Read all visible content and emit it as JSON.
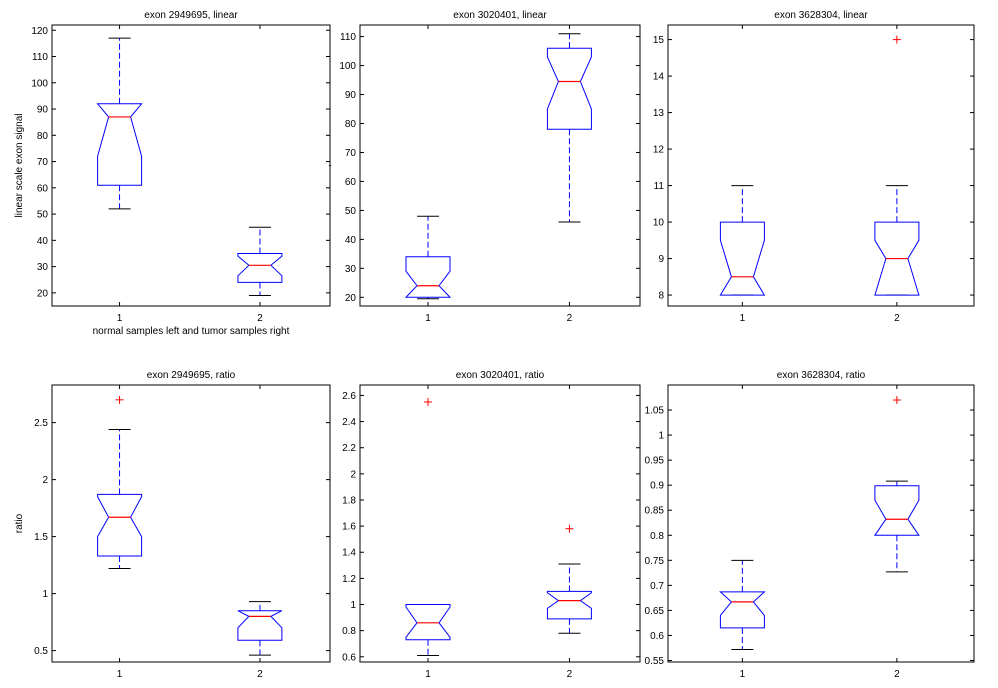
{
  "chart_data": [
    {
      "type": "box",
      "title": "exon 2949695, linear",
      "xlabel": "normal samples left and tumor samples right",
      "ylabel": "linear scale exon signal",
      "categories": [
        "1",
        "2"
      ],
      "ylim": [
        15,
        122
      ],
      "yticks": [
        20,
        30,
        40,
        50,
        60,
        70,
        80,
        90,
        100,
        110,
        120
      ],
      "ytick_labels": [
        "20",
        "30",
        "40",
        "50",
        "60",
        "70",
        "80",
        "90",
        "100",
        "110",
        "120"
      ],
      "boxes": [
        {
          "label": "1",
          "lower_whisker": 52,
          "q1": 61,
          "median": 87,
          "q3": 92,
          "upper_whisker": 117,
          "notch_low": 72,
          "notch_high": 92,
          "outliers": []
        },
        {
          "label": "2",
          "lower_whisker": 19,
          "q1": 24,
          "median": 30.5,
          "q3": 35,
          "upper_whisker": 45,
          "notch_low": 26.5,
          "notch_high": 34,
          "outliers": []
        }
      ]
    },
    {
      "type": "box",
      "title": "exon 3020401, linear",
      "xlabel": "",
      "ylabel": ",",
      "categories": [
        "1",
        "2"
      ],
      "ylim": [
        17,
        114
      ],
      "yticks": [
        20,
        30,
        40,
        50,
        60,
        70,
        80,
        90,
        100,
        110
      ],
      "ytick_labels": [
        "20",
        "30",
        "40",
        "50",
        "60",
        "70",
        "80",
        "90",
        "100",
        "110"
      ],
      "boxes": [
        {
          "label": "1",
          "lower_whisker": 19.5,
          "q1": 20,
          "median": 24,
          "q3": 34,
          "upper_whisker": 48,
          "notch_low": 20,
          "notch_high": 29,
          "outliers": []
        },
        {
          "label": "2",
          "lower_whisker": 46,
          "q1": 78,
          "median": 94.5,
          "q3": 106,
          "upper_whisker": 111,
          "notch_low": 85,
          "notch_high": 103,
          "outliers": []
        }
      ]
    },
    {
      "type": "box",
      "title": "exon 3628304, linear",
      "xlabel": "",
      "ylabel": "",
      "categories": [
        "1",
        "2"
      ],
      "ylim": [
        7.7,
        15.4
      ],
      "yticks": [
        8,
        9,
        10,
        11,
        12,
        13,
        14,
        15
      ],
      "ytick_labels": [
        "8",
        "9",
        "10",
        "11",
        "12",
        "13",
        "14",
        "15"
      ],
      "boxes": [
        {
          "label": "1",
          "lower_whisker": 8,
          "q1": 8,
          "median": 8.5,
          "q3": 10,
          "upper_whisker": 11,
          "notch_low": 8,
          "notch_high": 9.5,
          "outliers": []
        },
        {
          "label": "2",
          "lower_whisker": 8,
          "q1": 8,
          "median": 9,
          "q3": 10,
          "upper_whisker": 11,
          "notch_low": 8,
          "notch_high": 9.5,
          "outliers": [
            15
          ]
        }
      ]
    },
    {
      "type": "box",
      "title": "exon 2949695, ratio",
      "xlabel": "",
      "ylabel": "ratio",
      "categories": [
        "1",
        "2"
      ],
      "ylim": [
        0.4,
        2.83
      ],
      "yticks": [
        0.5,
        1,
        1.5,
        2,
        2.5
      ],
      "ytick_labels": [
        "0.5",
        "1",
        "1.5",
        "2",
        "2.5"
      ],
      "boxes": [
        {
          "label": "1",
          "lower_whisker": 1.22,
          "q1": 1.33,
          "median": 1.67,
          "q3": 1.87,
          "upper_whisker": 2.44,
          "notch_low": 1.5,
          "notch_high": 1.85,
          "outliers": [
            2.7
          ]
        },
        {
          "label": "2",
          "lower_whisker": 0.46,
          "q1": 0.59,
          "median": 0.8,
          "q3": 0.85,
          "upper_whisker": 0.93,
          "notch_low": 0.7,
          "notch_high": 0.85,
          "outliers": []
        }
      ]
    },
    {
      "type": "box",
      "title": "exon 3020401, ratio",
      "xlabel": "",
      "ylabel": "",
      "categories": [
        "1",
        "2"
      ],
      "ylim": [
        0.56,
        2.68
      ],
      "yticks": [
        0.6,
        0.8,
        1,
        1.2,
        1.4,
        1.6,
        1.8,
        2,
        2.2,
        2.4,
        2.6
      ],
      "ytick_labels": [
        "0.6",
        "0.8",
        "1",
        "1.2",
        "1.4",
        "1.6",
        "1.8",
        "2",
        "2.2",
        "2.4",
        "2.6"
      ],
      "boxes": [
        {
          "label": "1",
          "lower_whisker": 0.61,
          "q1": 0.73,
          "median": 0.86,
          "q3": 1.0,
          "upper_whisker": 1.0,
          "notch_low": 0.75,
          "notch_high": 0.98,
          "outliers": [
            2.55
          ]
        },
        {
          "label": "2",
          "lower_whisker": 0.78,
          "q1": 0.89,
          "median": 1.03,
          "q3": 1.1,
          "upper_whisker": 1.31,
          "notch_low": 0.97,
          "notch_high": 1.09,
          "outliers": [
            1.58
          ]
        }
      ]
    },
    {
      "type": "box",
      "title": "exon 3628304, ratio",
      "xlabel": "",
      "ylabel": "",
      "categories": [
        "1",
        "2"
      ],
      "ylim": [
        0.547,
        1.1
      ],
      "yticks": [
        0.55,
        0.6,
        0.65,
        0.7,
        0.75,
        0.8,
        0.85,
        0.9,
        0.95,
        1,
        1.05
      ],
      "ytick_labels": [
        "0.55",
        "0.6",
        "0.65",
        "0.7",
        "0.75",
        "0.8",
        "0.85",
        "0.9",
        "0.95",
        "1",
        "1.05"
      ],
      "boxes": [
        {
          "label": "1",
          "lower_whisker": 0.572,
          "q1": 0.615,
          "median": 0.667,
          "q3": 0.687,
          "upper_whisker": 0.75,
          "notch_low": 0.64,
          "notch_high": 0.687,
          "outliers": []
        },
        {
          "label": "2",
          "lower_whisker": 0.727,
          "q1": 0.8,
          "median": 0.832,
          "q3": 0.899,
          "upper_whisker": 0.908,
          "notch_low": 0.8,
          "notch_high": 0.87,
          "outliers": [
            1.07
          ]
        }
      ]
    }
  ],
  "colors": {
    "box": "#0000ff",
    "median": "#ff0000",
    "whisker": "#0000ff",
    "whisker_cap": "#000000",
    "outlier": "#ff0000",
    "axes": "#000000",
    "background": "#ffffff"
  }
}
